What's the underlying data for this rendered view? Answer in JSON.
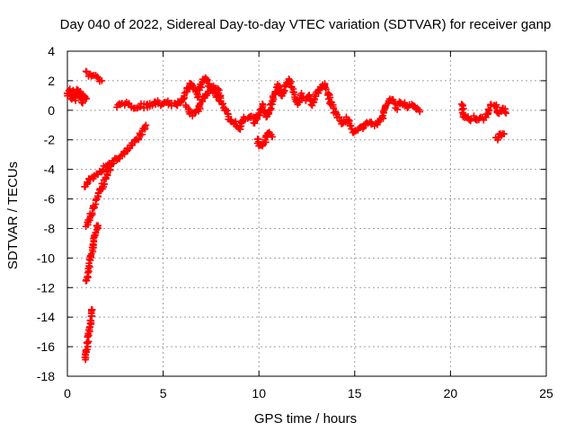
{
  "chart_data": {
    "type": "scatter",
    "title": "Day 040 of 2022, Sidereal Day-to-day VTEC variation (SDTVAR) for receiver ganp",
    "xlabel": "GPS time / hours",
    "ylabel": "SDTVAR / TECUs",
    "xlim": [
      0,
      25
    ],
    "ylim": [
      -18,
      4
    ],
    "xticks": [
      0,
      5,
      10,
      15,
      20,
      25
    ],
    "yticks": [
      4,
      2,
      0,
      -2,
      -4,
      -6,
      -8,
      -10,
      -12,
      -14,
      -16,
      -18
    ],
    "grid": true,
    "marker": "+",
    "series": [
      {
        "name": "SDTVAR",
        "color": "#ff0000",
        "segments": [
          [
            [
              0.0,
              1.0
            ],
            [
              0.1,
              1.4
            ],
            [
              0.2,
              0.8
            ],
            [
              0.3,
              1.3
            ],
            [
              0.4,
              0.7
            ],
            [
              0.5,
              1.4
            ],
            [
              0.6,
              1.0
            ],
            [
              0.7,
              1.2
            ],
            [
              0.8,
              0.6
            ],
            [
              0.9,
              1.0
            ],
            [
              1.0,
              0.8
            ]
          ],
          [
            [
              1.0,
              2.5
            ],
            [
              1.2,
              2.3
            ],
            [
              1.4,
              2.3
            ],
            [
              1.6,
              2.1
            ],
            [
              1.8,
              2.0
            ]
          ],
          [
            [
              0.9,
              -5.1
            ],
            [
              1.2,
              -4.7
            ],
            [
              1.5,
              -4.3
            ],
            [
              1.8,
              -4.0
            ],
            [
              2.1,
              -3.7
            ],
            [
              2.4,
              -3.5
            ],
            [
              2.7,
              -3.2
            ],
            [
              3.0,
              -2.9
            ],
            [
              3.3,
              -2.5
            ],
            [
              3.6,
              -2.0
            ],
            [
              3.9,
              -1.5
            ],
            [
              4.1,
              -1.0
            ]
          ],
          [
            [
              1.0,
              -7.8
            ],
            [
              1.2,
              -7.2
            ],
            [
              1.4,
              -6.5
            ],
            [
              1.6,
              -5.8
            ],
            [
              1.8,
              -5.2
            ],
            [
              2.0,
              -4.6
            ],
            [
              2.2,
              -4.0
            ],
            [
              2.4,
              -3.6
            ]
          ],
          [
            [
              1.0,
              -11.6
            ],
            [
              1.1,
              -10.9
            ],
            [
              1.2,
              -10.1
            ],
            [
              1.3,
              -9.4
            ],
            [
              1.4,
              -8.7
            ],
            [
              1.5,
              -8.2
            ],
            [
              1.6,
              -7.8
            ]
          ],
          [
            [
              0.95,
              -16.9
            ],
            [
              1.0,
              -16.3
            ],
            [
              1.05,
              -15.7
            ],
            [
              1.1,
              -15.1
            ],
            [
              1.2,
              -14.4
            ],
            [
              1.3,
              -13.5
            ]
          ],
          [
            [
              2.6,
              0.2
            ],
            [
              2.9,
              0.5
            ],
            [
              3.2,
              0.4
            ],
            [
              3.5,
              0.2
            ],
            [
              3.8,
              0.3
            ],
            [
              4.1,
              0.3
            ],
            [
              4.4,
              0.4
            ],
            [
              4.7,
              0.5
            ],
            [
              5.0,
              0.4
            ],
            [
              5.3,
              0.5
            ],
            [
              5.6,
              0.3
            ],
            [
              5.9,
              0.6
            ],
            [
              6.2,
              1.2
            ],
            [
              6.4,
              1.8
            ],
            [
              6.6,
              1.5
            ],
            [
              6.8,
              1.0
            ],
            [
              7.0,
              1.8
            ],
            [
              7.2,
              2.2
            ],
            [
              7.4,
              1.7
            ],
            [
              7.6,
              1.4
            ],
            [
              7.8,
              1.0
            ],
            [
              8.0,
              0.6
            ],
            [
              8.2,
              0.2
            ],
            [
              8.4,
              -0.4
            ],
            [
              8.6,
              -0.8
            ],
            [
              8.8,
              -0.9
            ],
            [
              9.0,
              -1.2
            ],
            [
              9.2,
              -0.5
            ],
            [
              9.4,
              -0.7
            ],
            [
              9.6,
              -0.3
            ],
            [
              9.8,
              -0.8
            ],
            [
              10.0,
              -0.2
            ],
            [
              10.2,
              0.3
            ],
            [
              10.4,
              -0.5
            ],
            [
              10.6,
              0.2
            ],
            [
              10.8,
              1.1
            ],
            [
              11.0,
              1.7
            ],
            [
              11.2,
              0.9
            ],
            [
              11.4,
              1.8
            ],
            [
              11.6,
              2.0
            ],
            [
              11.8,
              1.2
            ],
            [
              12.0,
              0.4
            ],
            [
              12.2,
              1.0
            ],
            [
              12.4,
              0.7
            ],
            [
              12.6,
              1.1
            ],
            [
              12.8,
              0.4
            ],
            [
              13.0,
              1.0
            ],
            [
              13.2,
              1.5
            ],
            [
              13.4,
              1.7
            ],
            [
              13.6,
              1.2
            ],
            [
              13.8,
              0.3
            ],
            [
              14.0,
              -0.2
            ],
            [
              14.2,
              -0.6
            ],
            [
              14.4,
              -0.9
            ],
            [
              14.6,
              -0.6
            ],
            [
              14.8,
              -1.2
            ],
            [
              15.0,
              -1.5
            ],
            [
              15.2,
              -1.3
            ],
            [
              15.4,
              -1.1
            ],
            [
              15.6,
              -0.9
            ],
            [
              15.8,
              -0.8
            ],
            [
              16.0,
              -1.0
            ],
            [
              16.2,
              -0.9
            ],
            [
              16.4,
              -0.6
            ],
            [
              16.6,
              0.2
            ],
            [
              16.8,
              0.7
            ],
            [
              17.0,
              0.6
            ],
            [
              17.2,
              0.2
            ],
            [
              17.4,
              0.6
            ],
            [
              17.6,
              0.4
            ],
            [
              17.8,
              0.2
            ],
            [
              18.0,
              0.3
            ],
            [
              18.2,
              0.1
            ],
            [
              18.4,
              -0.1
            ]
          ],
          [
            [
              9.9,
              -2.0
            ],
            [
              10.1,
              -2.5
            ],
            [
              10.3,
              -2.1
            ],
            [
              10.5,
              -1.4
            ],
            [
              10.7,
              -1.8
            ]
          ],
          [
            [
              6.2,
              0.2
            ],
            [
              6.5,
              -0.3
            ],
            [
              6.8,
              0.0
            ],
            [
              7.1,
              0.8
            ],
            [
              7.4,
              1.3
            ],
            [
              7.7,
              1.6
            ],
            [
              8.0,
              1.0
            ]
          ],
          [
            [
              20.6,
              0.5
            ],
            [
              20.7,
              -0.4
            ],
            [
              21.0,
              -0.6
            ],
            [
              21.3,
              -0.5
            ],
            [
              21.6,
              -0.6
            ],
            [
              21.9,
              -0.4
            ],
            [
              22.1,
              0.3
            ],
            [
              22.3,
              0.4
            ],
            [
              22.5,
              -0.2
            ],
            [
              22.7,
              0.2
            ],
            [
              22.9,
              -0.2
            ]
          ],
          [
            [
              22.4,
              -2.0
            ],
            [
              22.6,
              -1.7
            ],
            [
              22.8,
              -1.6
            ]
          ]
        ]
      }
    ]
  }
}
